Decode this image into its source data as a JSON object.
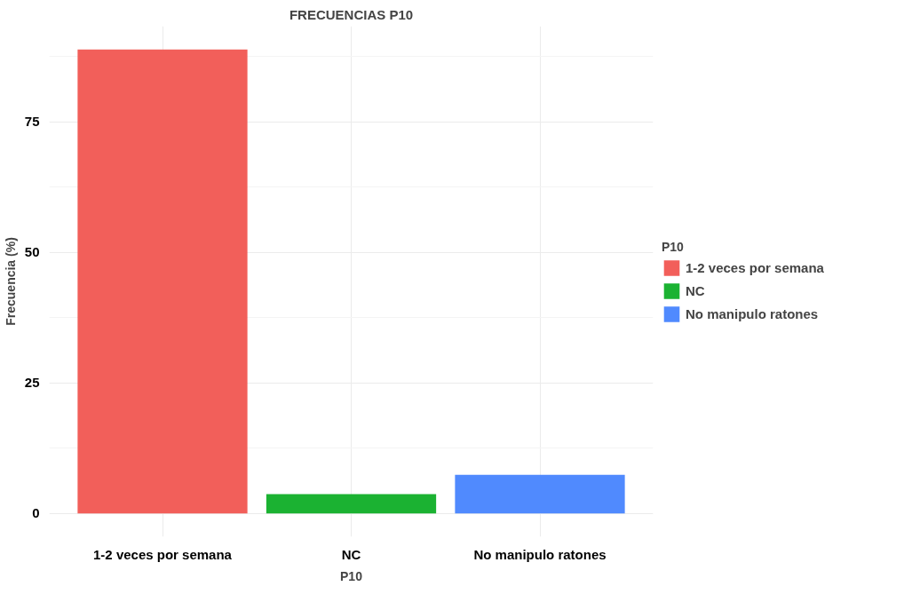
{
  "chart_data": {
    "type": "bar",
    "title": "FRECUENCIAS P10",
    "xlabel": "P10",
    "ylabel": "Frecuencia (%)",
    "legend_title": "P10",
    "categories": [
      "1-2 veces por semana",
      "NC",
      "No manipulo ratones"
    ],
    "series": [
      {
        "name": "1-2 veces por semana",
        "color": "#f25f5a",
        "values": [
          88.9,
          null,
          null
        ]
      },
      {
        "name": "NC",
        "color": "#1bb232",
        "values": [
          null,
          3.7,
          null
        ]
      },
      {
        "name": "No manipulo ratones",
        "color": "#508afe",
        "values": [
          null,
          null,
          7.4
        ]
      }
    ],
    "ylim": [
      -4.45,
      93.35
    ],
    "yticks": [
      0,
      25,
      50,
      75
    ],
    "grid": true,
    "legend": "right"
  }
}
